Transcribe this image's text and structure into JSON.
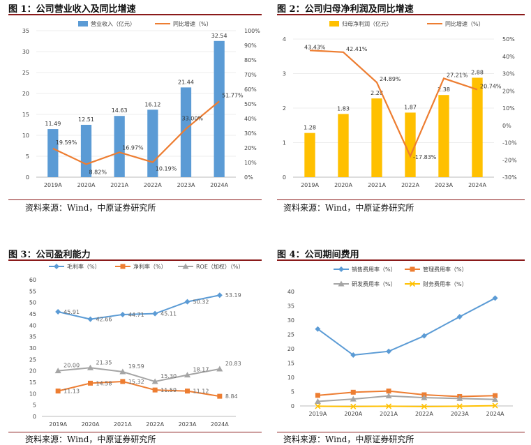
{
  "source_text": "资料来源：Wind，中原证券研究所",
  "chart_data": [
    {
      "id": "fig1",
      "type": "bar+line",
      "title": "图 1：公司营业收入及同比增速",
      "categories": [
        "2019A",
        "2020A",
        "2021A",
        "2022A",
        "2023A",
        "2024A"
      ],
      "series": [
        {
          "name": "营业收入（亿元）",
          "type": "bar",
          "axis": "left",
          "color": "#5b9bd5",
          "values": [
            11.49,
            12.51,
            14.63,
            16.12,
            21.44,
            32.54
          ],
          "labels": [
            "11.49",
            "12.51",
            "14.63",
            "16.12",
            "21.44",
            "32.54"
          ]
        },
        {
          "name": "同比增速（%）",
          "type": "line",
          "axis": "right",
          "color": "#ed7d31",
          "values": [
            19.59,
            8.82,
            16.97,
            10.19,
            33.0,
            51.77
          ],
          "labels": [
            "19.59%",
            "8.82%",
            "16.97%",
            "10.19%",
            "33.00%",
            "51.77%"
          ]
        }
      ],
      "left_axis": {
        "min": 0,
        "max": 35,
        "step": 5,
        "ticks": [
          "0",
          "5",
          "10",
          "15",
          "20",
          "25",
          "30",
          "35"
        ]
      },
      "right_axis": {
        "min": 0,
        "max": 100,
        "step": 10,
        "ticks": [
          "0%",
          "10%",
          "20%",
          "30%",
          "40%",
          "50%",
          "60%",
          "70%",
          "80%",
          "90%",
          "100%"
        ]
      },
      "legend_position": "top"
    },
    {
      "id": "fig2",
      "type": "bar+line",
      "title": "图 2：公司归母净利润及同比增速",
      "categories": [
        "2019A",
        "2020A",
        "2021A",
        "2022A",
        "2023A",
        "2024A"
      ],
      "series": [
        {
          "name": "归母净利润（亿元）",
          "type": "bar",
          "axis": "left",
          "color": "#ffc000",
          "values": [
            1.28,
            1.83,
            2.28,
            1.87,
            2.38,
            2.88
          ],
          "labels": [
            "1.28",
            "1.83",
            "2.28",
            "1.87",
            "2.38",
            "2.88"
          ]
        },
        {
          "name": "同比增速（%）",
          "type": "line",
          "axis": "right",
          "color": "#ed7d31",
          "values": [
            43.43,
            42.41,
            24.89,
            -17.83,
            27.21,
            20.74
          ],
          "labels": [
            "43.43%",
            "42.41%",
            "24.89%",
            "-17.83%",
            "27.21%",
            "20.74%"
          ]
        }
      ],
      "left_axis": {
        "min": 0,
        "max": 4,
        "step": 1,
        "ticks": [
          "0",
          "1",
          "2",
          "3",
          "4"
        ]
      },
      "right_axis": {
        "min": -30,
        "max": 50,
        "step": 10,
        "ticks": [
          "-30%",
          "-20%",
          "-10%",
          "0%",
          "10%",
          "20%",
          "30%",
          "40%",
          "50%"
        ]
      },
      "legend_position": "top"
    },
    {
      "id": "fig3",
      "type": "line",
      "title": "图 3：公司盈利能力",
      "categories": [
        "2019A",
        "2020A",
        "2021A",
        "2022A",
        "2023A",
        "2024A"
      ],
      "series": [
        {
          "name": "毛利率（%）",
          "color": "#5b9bd5",
          "marker": "diamond",
          "values": [
            45.91,
            42.66,
            44.71,
            45.11,
            50.32,
            53.19
          ],
          "labels": [
            "45.91",
            "42.66",
            "44.71",
            "45.11",
            "50.32",
            "53.19"
          ]
        },
        {
          "name": "净利率（%）",
          "color": "#ed7d31",
          "marker": "square",
          "values": [
            11.13,
            14.58,
            15.32,
            11.59,
            11.12,
            8.84
          ],
          "labels": [
            "11.13",
            "14.58",
            "15.32",
            "11.59",
            "11.12",
            "8.84"
          ]
        },
        {
          "name": "ROE（加权）（%）",
          "color": "#a5a5a5",
          "marker": "triangle",
          "values": [
            20.0,
            21.35,
            19.59,
            15.3,
            18.17,
            20.83
          ],
          "labels": [
            "20.00",
            "21.35",
            "19.59",
            "15.30",
            "18.17",
            "20.83"
          ]
        }
      ],
      "left_axis": {
        "min": 0,
        "max": 60,
        "step": 5,
        "ticks": [
          "0",
          "5",
          "10",
          "15",
          "20",
          "25",
          "30",
          "35",
          "40",
          "45",
          "50",
          "55",
          "60"
        ]
      },
      "legend_position": "top"
    },
    {
      "id": "fig4",
      "type": "line",
      "title": "图 4：公司期间费用",
      "categories": [
        "2019A",
        "2020A",
        "2021A",
        "2022A",
        "2023A",
        "2024A"
      ],
      "series": [
        {
          "name": "销售费用率（%）",
          "color": "#5b9bd5",
          "marker": "diamond",
          "values": [
            26.9,
            17.8,
            19.1,
            24.5,
            31.2,
            37.7
          ]
        },
        {
          "name": "管理费用率（%）",
          "color": "#ed7d31",
          "marker": "square",
          "values": [
            3.7,
            4.8,
            5.2,
            3.9,
            3.3,
            3.6
          ]
        },
        {
          "name": "研发费用率（%）",
          "color": "#a5a5a5",
          "marker": "triangle",
          "values": [
            1.6,
            2.4,
            3.5,
            2.9,
            2.6,
            2.3
          ]
        },
        {
          "name": "财务费用率（%）",
          "color": "#ffc000",
          "marker": "x",
          "values": [
            -0.1,
            -0.2,
            -0.1,
            -0.2,
            -0.1,
            0.1
          ]
        }
      ],
      "left_axis": {
        "min": 0,
        "max": 40,
        "step": 5,
        "ticks": [
          "0",
          "5",
          "10",
          "15",
          "20",
          "25",
          "30",
          "35",
          "40"
        ]
      },
      "legend_position": "top"
    }
  ]
}
